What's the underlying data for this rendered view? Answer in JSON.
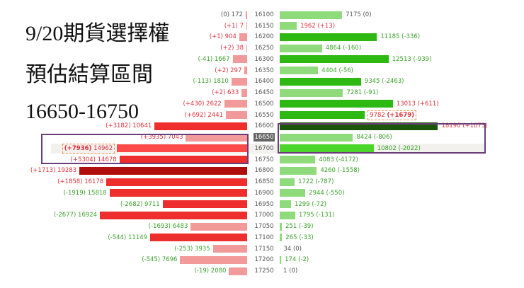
{
  "title_lines": [
    "9/20期貨選擇權",
    "預估結算區間",
    "16650-16750"
  ],
  "colors": {
    "put": {
      "light": "#f29a9a",
      "normal": "#ee2d2d",
      "max": "#b00d0d",
      "highlight": "#ff4a4a"
    },
    "call": {
      "light": "#8fdb7c",
      "normal": "#2db812",
      "max": "#1c5608",
      "highlight": "#4bd42a"
    },
    "change_up": "#e0303a",
    "change_down": "#3aa22a",
    "change_zero": "#555555",
    "box": "#6a3d7a"
  },
  "current_strike": "16650",
  "highlight_row": "16700",
  "chart_data": {
    "type": "bar",
    "orientation": "butterfly-horizontal",
    "series": [
      {
        "name": "put"
      },
      {
        "name": "call"
      }
    ],
    "rows": [
      {
        "strike": "16100",
        "put_oi": 172,
        "put_chg": "(0)",
        "put_shade": "light",
        "call_oi": 7175,
        "call_chg": "(0)",
        "call_shade": "light"
      },
      {
        "strike": "16150",
        "put_oi": 7,
        "put_chg": "(+1)",
        "put_shade": "light",
        "call_oi": 1962,
        "call_chg": "(+13)",
        "call_shade": "light"
      },
      {
        "strike": "16200",
        "put_oi": 904,
        "put_chg": "(+1)",
        "put_shade": "light",
        "call_oi": 11185,
        "call_chg": "(-336)",
        "call_shade": "normal"
      },
      {
        "strike": "16250",
        "put_oi": 38,
        "put_chg": "(+2)",
        "put_shade": "light",
        "call_oi": 4864,
        "call_chg": "(-160)",
        "call_shade": "light"
      },
      {
        "strike": "16300",
        "put_oi": 1667,
        "put_chg": "(-41)",
        "put_shade": "light",
        "call_oi": 12513,
        "call_chg": "(-939)",
        "call_shade": "normal"
      },
      {
        "strike": "16350",
        "put_oi": 297,
        "put_chg": "(+2)",
        "put_shade": "light",
        "call_oi": 4404,
        "call_chg": "(-56)",
        "call_shade": "light"
      },
      {
        "strike": "16400",
        "put_oi": 1810,
        "put_chg": "(-113)",
        "put_shade": "light",
        "call_oi": 9345,
        "call_chg": "(-2463)",
        "call_shade": "normal"
      },
      {
        "strike": "16450",
        "put_oi": 633,
        "put_chg": "(+2)",
        "put_shade": "light",
        "call_oi": 7281,
        "call_chg": "(-91)",
        "call_shade": "light"
      },
      {
        "strike": "16500",
        "put_oi": 2622,
        "put_chg": "(+430)",
        "put_shade": "light",
        "call_oi": 13013,
        "call_chg": "(+611)",
        "call_shade": "normal"
      },
      {
        "strike": "16550",
        "put_oi": 2441,
        "put_chg": "(+692)",
        "put_shade": "light",
        "call_oi": 9782,
        "call_chg": "(+1679)",
        "call_shade": "normal",
        "call_max_change": true
      },
      {
        "strike": "16600",
        "put_oi": 10641,
        "put_chg": "(+3182)",
        "put_shade": "normal",
        "call_oi": 18190,
        "call_chg": "(+1073)",
        "call_shade": "max"
      },
      {
        "strike": "16650",
        "put_oi": 7043,
        "put_chg": "(+3935)",
        "put_shade": "light",
        "call_oi": 8424,
        "call_chg": "(-806)",
        "call_shade": "light"
      },
      {
        "strike": "16700",
        "put_oi": 14962,
        "put_chg": "(+7936)",
        "put_shade": "highlight",
        "put_max_change": true,
        "call_oi": 10802,
        "call_chg": "(-2022)",
        "call_shade": "highlight"
      },
      {
        "strike": "16750",
        "put_oi": 14678,
        "put_chg": "(+5304)",
        "put_shade": "normal",
        "call_oi": 4083,
        "call_chg": "(-4172)",
        "call_shade": "light"
      },
      {
        "strike": "16800",
        "put_oi": 19283,
        "put_chg": "(+1713)",
        "put_shade": "max",
        "call_oi": 4260,
        "call_chg": "(-1558)",
        "call_shade": "light"
      },
      {
        "strike": "16850",
        "put_oi": 16178,
        "put_chg": "(+1858)",
        "put_shade": "normal",
        "call_oi": 1722,
        "call_chg": "(-787)",
        "call_shade": "light"
      },
      {
        "strike": "16900",
        "put_oi": 15818,
        "put_chg": "(-1919)",
        "put_shade": "normal",
        "call_oi": 2944,
        "call_chg": "(-550)",
        "call_shade": "light"
      },
      {
        "strike": "16950",
        "put_oi": 9711,
        "put_chg": "(-2682)",
        "put_shade": "normal",
        "call_oi": 1299,
        "call_chg": "(-72)",
        "call_shade": "light"
      },
      {
        "strike": "17000",
        "put_oi": 16924,
        "put_chg": "(-2677)",
        "put_shade": "normal",
        "call_oi": 1795,
        "call_chg": "(-131)",
        "call_shade": "light"
      },
      {
        "strike": "17050",
        "put_oi": 6483,
        "put_chg": "(-1693)",
        "put_shade": "light",
        "call_oi": 251,
        "call_chg": "(-39)",
        "call_shade": "light"
      },
      {
        "strike": "17100",
        "put_oi": 11149,
        "put_chg": "(-544)",
        "put_shade": "normal",
        "call_oi": 265,
        "call_chg": "(-33)",
        "call_shade": "light"
      },
      {
        "strike": "17150",
        "put_oi": 3935,
        "put_chg": "(-253)",
        "put_shade": "light",
        "call_oi": 34,
        "call_chg": "(0)",
        "call_shade": "light"
      },
      {
        "strike": "17200",
        "put_oi": 7696,
        "put_chg": "(-545)",
        "put_shade": "light",
        "call_oi": 174,
        "call_chg": "(-2)",
        "call_shade": "light"
      },
      {
        "strike": "17250",
        "put_oi": 2080,
        "put_chg": "(-19)",
        "put_shade": "light",
        "call_oi": 1,
        "call_chg": "(0)",
        "call_shade": "light"
      }
    ]
  }
}
